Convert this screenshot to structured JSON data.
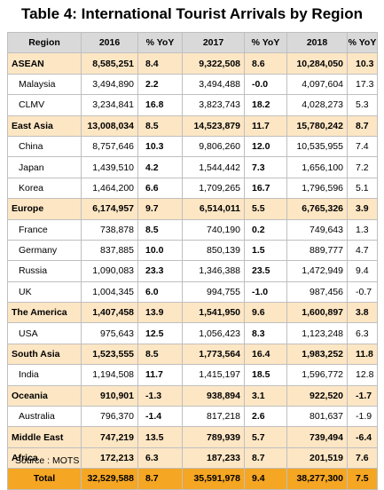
{
  "title": "Table 4: International Tourist Arrivals by Region",
  "header": [
    "Region",
    "2016",
    "% YoY",
    "2017",
    "% YoY",
    "2018",
    "% YoY"
  ],
  "rows": [
    {
      "type": "region",
      "cells": [
        "ASEAN",
        "8,585,251",
        "8.4",
        "9,322,508",
        "8.6",
        "10,284,050",
        "10.3"
      ]
    },
    {
      "type": "country",
      "cells": [
        "Malaysia",
        "3,494,890",
        "2.2",
        "3,494,488",
        "-0.0",
        "4,097,604",
        "17.3"
      ]
    },
    {
      "type": "country",
      "cells": [
        "CLMV",
        "3,234,841",
        "16.8",
        "3,823,743",
        "18.2",
        "4,028,273",
        "5.3"
      ]
    },
    {
      "type": "region",
      "cells": [
        "East Asia",
        "13,008,034",
        "8.5",
        "14,523,879",
        "11.7",
        "15,780,242",
        "8.7"
      ]
    },
    {
      "type": "country",
      "cells": [
        "China",
        "8,757,646",
        "10.3",
        "9,806,260",
        "12.0",
        "10,535,955",
        "7.4"
      ]
    },
    {
      "type": "country",
      "cells": [
        "Japan",
        "1,439,510",
        "4.2",
        "1,544,442",
        "7.3",
        "1,656,100",
        "7.2"
      ]
    },
    {
      "type": "country",
      "cells": [
        "Korea",
        "1,464,200",
        "6.6",
        "1,709,265",
        "16.7",
        "1,796,596",
        "5.1"
      ]
    },
    {
      "type": "region",
      "cells": [
        "Europe",
        "6,174,957",
        "9.7",
        "6,514,011",
        "5.5",
        "6,765,326",
        "3.9"
      ]
    },
    {
      "type": "country",
      "cells": [
        "France",
        "738,878",
        "8.5",
        "740,190",
        "0.2",
        "749,643",
        "1.3"
      ]
    },
    {
      "type": "country",
      "cells": [
        "Germany",
        "837,885",
        "10.0",
        "850,139",
        "1.5",
        "889,777",
        "4.7"
      ]
    },
    {
      "type": "country",
      "cells": [
        "Russia",
        "1,090,083",
        "23.3",
        "1,346,388",
        "23.5",
        "1,472,949",
        "9.4"
      ]
    },
    {
      "type": "country",
      "cells": [
        "UK",
        "1,004,345",
        "6.0",
        "994,755",
        "-1.0",
        "987,456",
        "-0.7"
      ]
    },
    {
      "type": "region",
      "cells": [
        "The America",
        "1,407,458",
        "13.9",
        "1,541,950",
        "9.6",
        "1,600,897",
        "3.8"
      ]
    },
    {
      "type": "country",
      "cells": [
        "USA",
        "975,643",
        "12.5",
        "1,056,423",
        "8.3",
        "1,123,248",
        "6.3"
      ]
    },
    {
      "type": "region",
      "cells": [
        "South Asia",
        "1,523,555",
        "8.5",
        "1,773,564",
        "16.4",
        "1,983,252",
        "11.8"
      ]
    },
    {
      "type": "country",
      "cells": [
        "India",
        "1,194,508",
        "11.7",
        "1,415,197",
        "18.5",
        "1,596,772",
        "12.8"
      ]
    },
    {
      "type": "region",
      "cells": [
        "Oceania",
        "910,901",
        "-1.3",
        "938,894",
        "3.1",
        "922,520",
        "-1.7"
      ]
    },
    {
      "type": "country",
      "cells": [
        "Australia",
        "796,370",
        "-1.4",
        "817,218",
        "2.6",
        "801,637",
        "-1.9"
      ]
    },
    {
      "type": "region",
      "cells": [
        "Middle East",
        "747,219",
        "13.5",
        "789,939",
        "5.7",
        "739,494",
        "-6.4"
      ]
    },
    {
      "type": "region",
      "cells": [
        "Africa",
        "172,213",
        "6.3",
        "187,233",
        "8.7",
        "201,519",
        "7.6"
      ]
    },
    {
      "type": "total",
      "cells": [
        "Total",
        "32,529,588",
        "8.7",
        "35,591,978",
        "9.4",
        "38,277,300",
        "7.5"
      ]
    }
  ],
  "source": "Source : MOTS",
  "colors": {
    "header_bg": "#d9d9d9",
    "region_bg": "#fde6c4",
    "total_bg": "#f5a623",
    "border": "#bfbfbf"
  }
}
